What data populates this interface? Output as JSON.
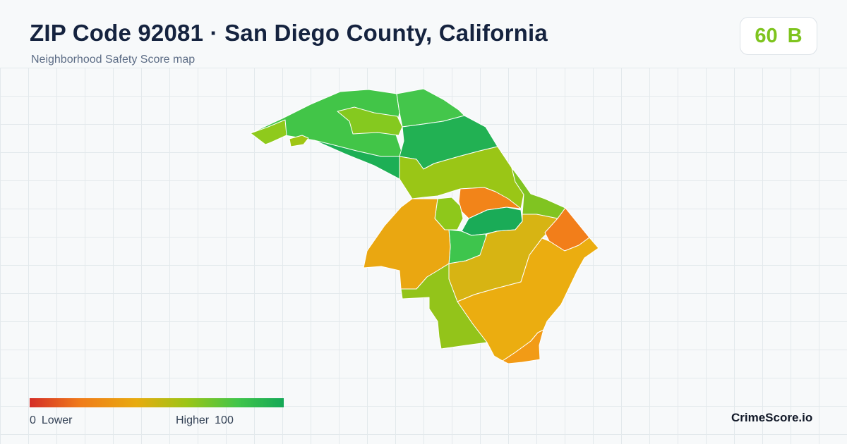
{
  "header": {
    "title": "ZIP Code 92081 · San Diego County, California",
    "subtitle": "Neighborhood Safety Score map"
  },
  "score": {
    "value": "60",
    "grade": "B",
    "color": "#7ec41e"
  },
  "legend": {
    "min": "0",
    "low_label": "Lower",
    "high_label": "Higher",
    "max": "100",
    "colors": [
      "#d42d27",
      "#f07c1a",
      "#e8ab10",
      "#9bc516",
      "#40c54a",
      "#15a857"
    ]
  },
  "map": {
    "neighborhoods": [
      {
        "name": "nw-arm",
        "color": "#42c548"
      },
      {
        "name": "nw-inner",
        "color": "#85c91f"
      },
      {
        "name": "north-center",
        "color": "#44c64b"
      },
      {
        "name": "north-east",
        "color": "#22b153"
      },
      {
        "name": "arm-tip",
        "color": "#8fca1c"
      },
      {
        "name": "arm-dot",
        "color": "#9fc614"
      },
      {
        "name": "lower-strip",
        "color": "#1daf55"
      },
      {
        "name": "central-north",
        "color": "#9ac616"
      },
      {
        "name": "east-strip",
        "color": "#80c421"
      },
      {
        "name": "hot-center",
        "color": "#f28419"
      },
      {
        "name": "small-center",
        "color": "#8ec81b"
      },
      {
        "name": "green-pocket",
        "color": "#1aab57"
      },
      {
        "name": "center-green",
        "color": "#3ec54d"
      },
      {
        "name": "west-orange",
        "color": "#eaa711"
      },
      {
        "name": "center-yellow",
        "color": "#d7b413"
      },
      {
        "name": "east-orange",
        "color": "#f27e1a"
      },
      {
        "name": "south-large",
        "color": "#ebad10"
      },
      {
        "name": "south-west",
        "color": "#93c41a"
      },
      {
        "name": "south-tip",
        "color": "#f29b16"
      }
    ]
  },
  "branding": {
    "site": "CrimeScore.io"
  }
}
